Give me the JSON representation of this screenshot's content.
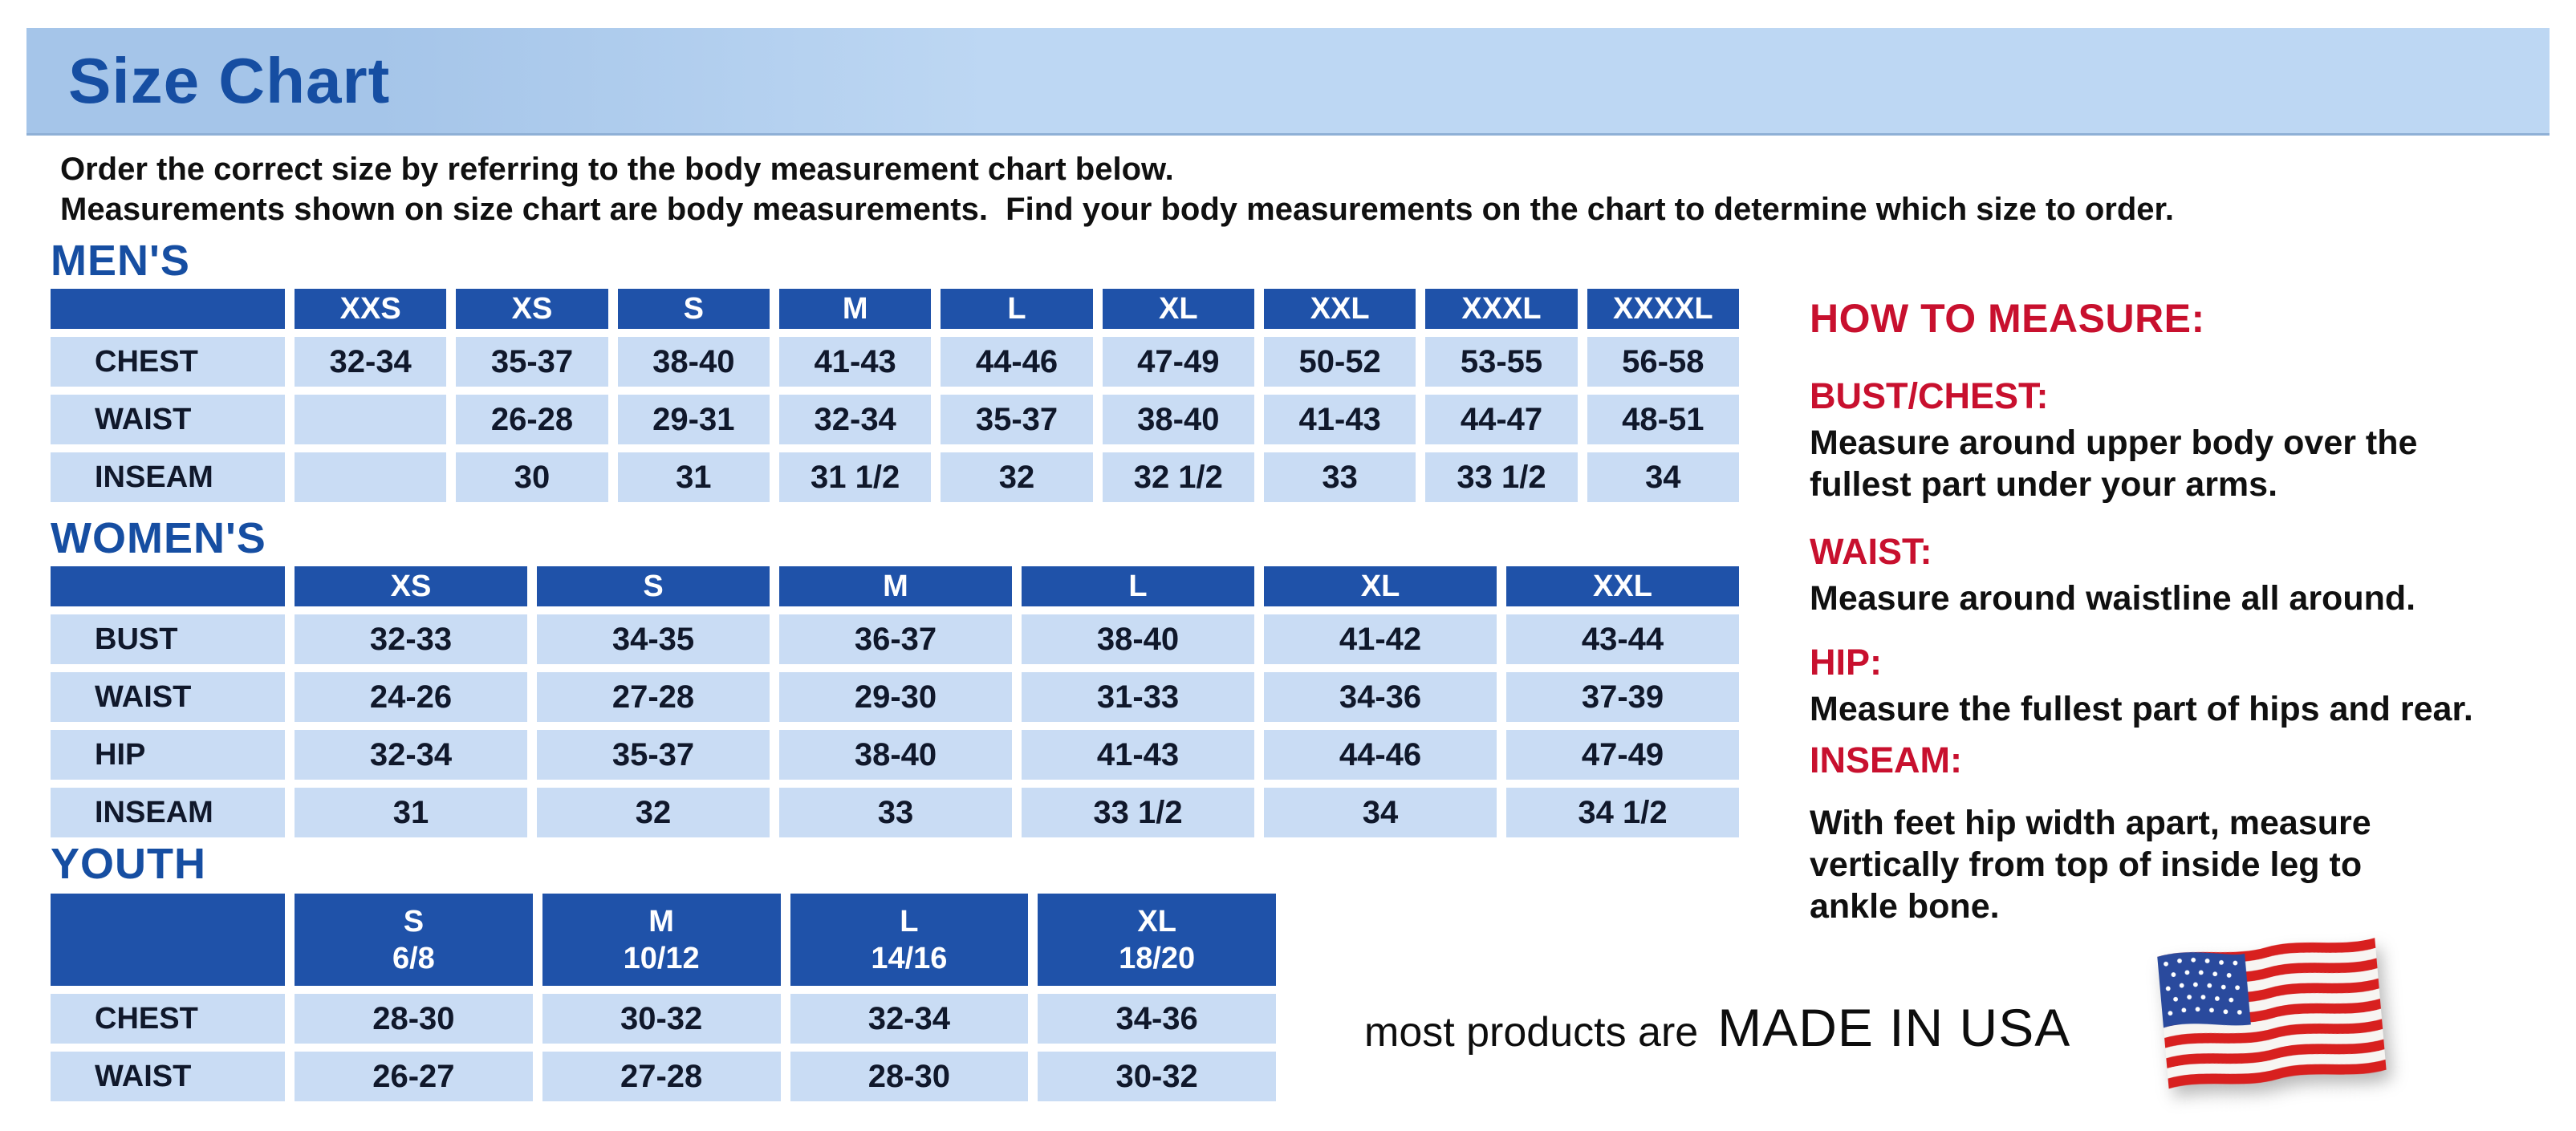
{
  "page": {
    "title": "Size Chart"
  },
  "intro": {
    "line1": "Order the correct size by referring to the body measurement chart below.",
    "line2": "Measurements shown on size chart are body measurements.  Find your body measurements on the chart to determine which size to order."
  },
  "sections": {
    "mens": {
      "heading": "MEN'S",
      "columns": [
        "XXS",
        "XS",
        "S",
        "M",
        "L",
        "XL",
        "XXL",
        "XXXL",
        "XXXXL"
      ],
      "rows": [
        {
          "label": "CHEST",
          "values": [
            "32-34",
            "35-37",
            "38-40",
            "41-43",
            "44-46",
            "47-49",
            "50-52",
            "53-55",
            "56-58"
          ]
        },
        {
          "label": "WAIST",
          "values": [
            "",
            "26-28",
            "29-31",
            "32-34",
            "35-37",
            "38-40",
            "41-43",
            "44-47",
            "48-51"
          ]
        },
        {
          "label": "INSEAM",
          "values": [
            "",
            "30",
            "31",
            "31 1/2",
            "32",
            "32 1/2",
            "33",
            "33 1/2",
            "34"
          ]
        }
      ]
    },
    "womens": {
      "heading": "WOMEN'S",
      "columns": [
        "XS",
        "S",
        "M",
        "L",
        "XL",
        "XXL"
      ],
      "rows": [
        {
          "label": "BUST",
          "values": [
            "32-33",
            "34-35",
            "36-37",
            "38-40",
            "41-42",
            "43-44"
          ]
        },
        {
          "label": "WAIST",
          "values": [
            "24-26",
            "27-28",
            "29-30",
            "31-33",
            "34-36",
            "37-39"
          ]
        },
        {
          "label": "HIP",
          "values": [
            "32-34",
            "35-37",
            "38-40",
            "41-43",
            "44-46",
            "47-49"
          ]
        },
        {
          "label": "INSEAM",
          "values": [
            "31",
            "32",
            "33",
            "33 1/2",
            "34",
            "34 1/2"
          ]
        }
      ]
    },
    "youth": {
      "heading": "YOUTH",
      "columns": [
        {
          "label": "S",
          "sub": "6/8"
        },
        {
          "label": "M",
          "sub": "10/12"
        },
        {
          "label": "L",
          "sub": "14/16"
        },
        {
          "label": "XL",
          "sub": "18/20"
        }
      ],
      "rows": [
        {
          "label": "CHEST",
          "values": [
            "28-30",
            "30-32",
            "32-34",
            "34-36"
          ]
        },
        {
          "label": "WAIST",
          "values": [
            "26-27",
            "27-28",
            "28-30",
            "30-32"
          ]
        }
      ]
    }
  },
  "how_to_measure": {
    "heading": "HOW TO MEASURE:",
    "items": [
      {
        "label": "BUST/CHEST:",
        "text_lines": [
          "Measure around upper body over the",
          "fullest part under your arms."
        ]
      },
      {
        "label": "WAIST:",
        "text_lines": [
          "Measure around waistline all around."
        ]
      },
      {
        "label": "HIP:",
        "text_lines": [
          "Measure the fullest part of hips and rear."
        ]
      },
      {
        "label": "INSEAM:",
        "text_lines": [
          "With feet hip width apart, measure",
          "vertically from top of inside leg to",
          "ankle bone."
        ]
      }
    ]
  },
  "footer": {
    "prefix": "most products are",
    "emphasis": "MADE IN USA",
    "flag_icon": "us-flag-icon"
  },
  "colors": {
    "title_blue": "#164EA2",
    "table_header_blue": "#1F52A9",
    "row_light_blue": "#C9DCF4",
    "cell_text": "#10182B",
    "accent_red": "#C8102E",
    "banner_dark": "#A5C5E9",
    "banner_light": "#BDD7F3",
    "flag_red": "#D8201F",
    "flag_canton_blue": "#2A4A9D"
  }
}
